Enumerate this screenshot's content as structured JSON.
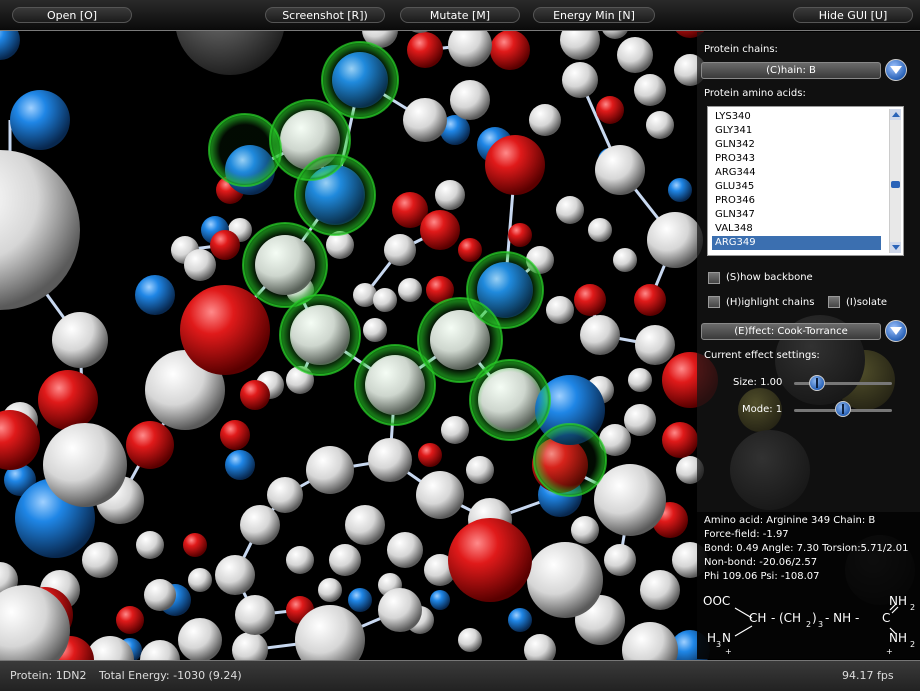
{
  "toolbar": {
    "open": "Open [O]",
    "screenshot": "Screenshot [R])",
    "mutate": "Mutate [M]",
    "energy_min": "Energy Min [N]",
    "hide_gui": "Hide GUI [U]"
  },
  "panel": {
    "protein_chains_label": "Protein chains:",
    "chain_selected": "(C)hain: B",
    "amino_acids_label": "Protein amino acids:",
    "amino_acids": [
      "LYS340",
      "GLY341",
      "GLN342",
      "PRO343",
      "ARG344",
      "GLU345",
      "PRO346",
      "GLN347",
      "VAL348",
      "ARG349"
    ],
    "selected_amino_acid": "ARG349",
    "show_backbone": "(S)how backbone",
    "highlight_chains": "(H)ighlight chains",
    "isolate": "(I)solate",
    "effect_selected": "(E)ffect: Cook-Torrance",
    "current_effect_label": "Current effect settings:",
    "size_label": "Size: 1.00",
    "size_value": 1.0,
    "mode_label": "Mode: 1",
    "mode_value": 1
  },
  "info": {
    "line1": "Amino acid: Arginine 349  Chain: B",
    "line2": "Force-field: -1.97",
    "line3": "Bond: 0.49 Angle: 7.30 Torsion:5.71/2.01",
    "line4": "Non-bond: -20.06/2.57",
    "line5": "Phi 109.06 Psi: -108.07"
  },
  "formula": {
    "ooc": "OOC",
    "minus": "-",
    "ch": "CH",
    "dash1": "-",
    "lparen": "(CH",
    "sub2": "2",
    "rparen": ")",
    "sub3": "3",
    "dash2": "- NH -",
    "c": "C",
    "nh2_top": "NH",
    "nh2_top_sub": "2",
    "nh2_bot": "NH",
    "nh2_bot_sub": "2",
    "h3n": "H",
    "h3n_sub": "3",
    "h3n_n": "N",
    "plus1": "+",
    "plus2": "+"
  },
  "status": {
    "protein": "Protein: 1DN2",
    "energy": "Total Energy: -1030 (9.24)",
    "fps": "94.17 fps"
  },
  "colors": {
    "oxygen": "#d81818",
    "nitrogen": "#1a7ad8",
    "carbon": "#e8e8e8",
    "highlight": "#2bd42b",
    "accent": "#2a63b8"
  }
}
